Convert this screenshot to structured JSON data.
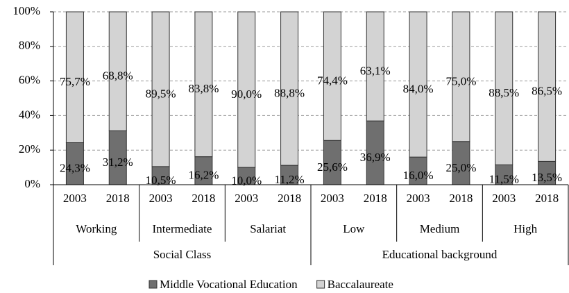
{
  "chart_data": {
    "type": "stacked_bar",
    "categories": [
      "2003",
      "2018",
      "2003",
      "2018",
      "2003",
      "2018",
      "2003",
      "2018",
      "2003",
      "2018",
      "2003",
      "2018"
    ],
    "subgroups": [
      "Working",
      "Intermediate",
      "Salariat",
      "Low",
      "Medium",
      "High"
    ],
    "groups": [
      "Social Class",
      "Educational background"
    ],
    "series": [
      {
        "name": "Middle Vocational Education",
        "color": "#6f6f6f",
        "values": [
          24.3,
          31.2,
          10.5,
          16.2,
          10.0,
          11.2,
          25.6,
          36.9,
          16.0,
          25.0,
          11.5,
          13.5
        ],
        "value_labels": [
          "24,3%",
          "31,2%",
          "10,5%",
          "16,2%",
          "10,0%",
          "11,2%",
          "25,6%",
          "36,9%",
          "16,0%",
          "25,0%",
          "11,5%",
          "13,5%"
        ]
      },
      {
        "name": "Baccalaureate",
        "color": "#d3d3d3",
        "values": [
          75.7,
          68.8,
          89.5,
          83.8,
          90.0,
          88.8,
          74.4,
          63.1,
          84.0,
          75.0,
          88.5,
          86.5
        ],
        "value_labels": [
          "75,7%",
          "68,8%",
          "89,5%",
          "83,8%",
          "90,0%",
          "88,8%",
          "74,4%",
          "63,1%",
          "84,0%",
          "75,0%",
          "88,5%",
          "86,5%"
        ]
      }
    ],
    "ylim": [
      0,
      100
    ],
    "yticks": [
      {
        "value": 0,
        "label": "0%"
      },
      {
        "value": 20,
        "label": "20%"
      },
      {
        "value": 40,
        "label": "40%"
      },
      {
        "value": 60,
        "label": "60%"
      },
      {
        "value": 80,
        "label": "80%"
      },
      {
        "value": 100,
        "label": "100%"
      }
    ],
    "grid": true,
    "legend": "bottom"
  }
}
